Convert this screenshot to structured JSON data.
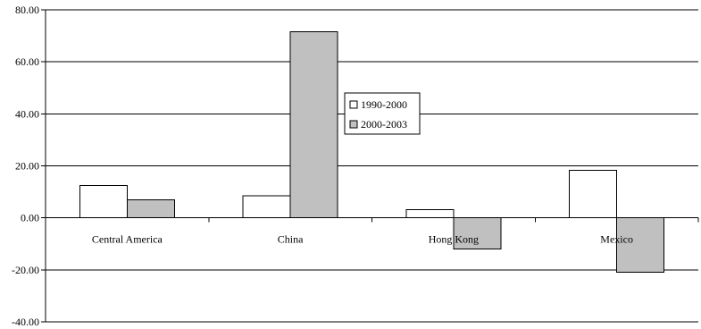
{
  "chart_data": {
    "type": "bar",
    "categories": [
      "Central America",
      "China",
      "Hong Kong",
      "Mexico"
    ],
    "series": [
      {
        "name": "1990-2000",
        "values": [
          12.5,
          8.5,
          3.2,
          18.3
        ],
        "color": "#ffffff"
      },
      {
        "name": "2000-2003",
        "values": [
          7.0,
          71.5,
          -12.0,
          -21.0
        ],
        "color": "#c0c0c0"
      }
    ],
    "ylim": [
      -40,
      80
    ],
    "yticks": [
      80,
      60,
      40,
      20,
      0,
      -20,
      -40
    ],
    "ytick_labels": [
      "80.00",
      "60.00",
      "40.00",
      "20.00",
      "0.00",
      "-20.00",
      "-40.00"
    ],
    "grid": true,
    "legend_position": "center-right"
  }
}
